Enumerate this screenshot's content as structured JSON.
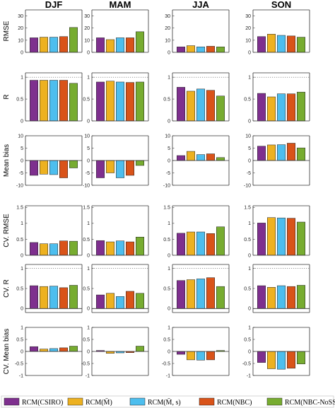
{
  "chart_data": {
    "type": "bar",
    "seasons": [
      "DJF",
      "MAM",
      "JJA",
      "SON"
    ],
    "series": [
      {
        "name": "RCM(CSIRO)",
        "color": "#7E2F8E"
      },
      {
        "name": "RCM(M̄)",
        "color": "#EDB120"
      },
      {
        "name": "RCM(M̄, s)",
        "color": "#4DBEEE"
      },
      {
        "name": "RCM(NBC)",
        "color": "#D95319"
      },
      {
        "name": "RCM(NBC-NoSST)",
        "color": "#77AC30"
      }
    ],
    "panels": [
      {
        "ylabel": "RMSE",
        "ylim": [
          0,
          35
        ],
        "yticks": [
          0,
          10,
          20,
          30
        ],
        "tick_labels": [
          "0",
          "10",
          "20",
          "30"
        ],
        "refline": null,
        "values": [
          [
            12.0,
            12.5,
            12.5,
            13.0,
            20.5
          ],
          [
            12.0,
            10.5,
            12.0,
            12.0,
            17.0
          ],
          [
            4.5,
            5.5,
            4.5,
            5.0,
            4.5
          ],
          [
            13.0,
            15.0,
            14.0,
            13.5,
            12.5
          ]
        ]
      },
      {
        "ylabel": "R",
        "ylim": [
          0,
          1.1
        ],
        "yticks": [
          0,
          0.5,
          1
        ],
        "tick_labels": [
          "0",
          "0.5",
          "1"
        ],
        "refline": 1,
        "values": [
          [
            0.93,
            0.93,
            0.93,
            0.93,
            0.86
          ],
          [
            0.89,
            0.91,
            0.89,
            0.88,
            0.89
          ],
          [
            0.77,
            0.68,
            0.73,
            0.7,
            0.57
          ],
          [
            0.63,
            0.55,
            0.62,
            0.62,
            0.66
          ]
        ]
      },
      {
        "ylabel": "Mean bias",
        "ylim": [
          -10,
          10
        ],
        "yticks": [
          -10,
          -5,
          0,
          5,
          10
        ],
        "tick_labels": [
          "-10",
          "-5",
          "0",
          "5",
          "10"
        ],
        "refline": null,
        "values": [
          [
            -6.0,
            -5.5,
            -5.7,
            -7.0,
            -3.0
          ],
          [
            -7.0,
            -5.0,
            -7.0,
            -6.0,
            -2.0
          ],
          [
            2.0,
            3.7,
            2.4,
            2.7,
            1.2
          ],
          [
            5.8,
            6.3,
            6.4,
            7.0,
            5.1
          ]
        ]
      },
      {
        "ylabel": "CV. RMSE",
        "ylim": [
          0,
          1.55
        ],
        "yticks": [
          0,
          0.5,
          1,
          1.5
        ],
        "tick_labels": [
          "0",
          "0.5",
          "1",
          "1.5"
        ],
        "refline": null,
        "values": [
          [
            0.4,
            0.36,
            0.36,
            0.45,
            0.44
          ],
          [
            0.46,
            0.42,
            0.45,
            0.42,
            0.57
          ],
          [
            0.69,
            0.73,
            0.73,
            0.68,
            0.89
          ],
          [
            1.01,
            1.18,
            1.17,
            1.16,
            1.04
          ]
        ]
      },
      {
        "ylabel": "CV. R",
        "ylim": [
          -0.1,
          1.1
        ],
        "yticks": [
          0,
          0.5,
          1
        ],
        "tick_labels": [
          "0",
          "0.5",
          "1"
        ],
        "refline": 1,
        "values": [
          [
            0.57,
            0.55,
            0.56,
            0.52,
            0.58
          ],
          [
            0.34,
            0.38,
            0.3,
            0.43,
            0.38
          ],
          [
            0.7,
            0.72,
            0.74,
            0.77,
            0.55
          ],
          [
            0.57,
            0.53,
            0.57,
            0.55,
            0.58
          ]
        ]
      },
      {
        "ylabel": "CV. Mean bias",
        "ylim": [
          -1,
          1
        ],
        "yticks": [
          -1,
          -0.5,
          0,
          0.5,
          1
        ],
        "tick_labels": [
          "-1",
          "-0.5",
          "0",
          "0.5",
          "1"
        ],
        "refline": null,
        "values": [
          [
            0.2,
            0.1,
            0.12,
            0.15,
            0.22
          ],
          [
            0.04,
            -0.08,
            -0.06,
            -0.05,
            0.22
          ],
          [
            -0.12,
            -0.35,
            -0.36,
            -0.35,
            0.04
          ],
          [
            -0.46,
            -0.72,
            -0.74,
            -0.7,
            -0.52
          ]
        ]
      }
    ],
    "grid": false,
    "legend_placement": "bottom"
  }
}
